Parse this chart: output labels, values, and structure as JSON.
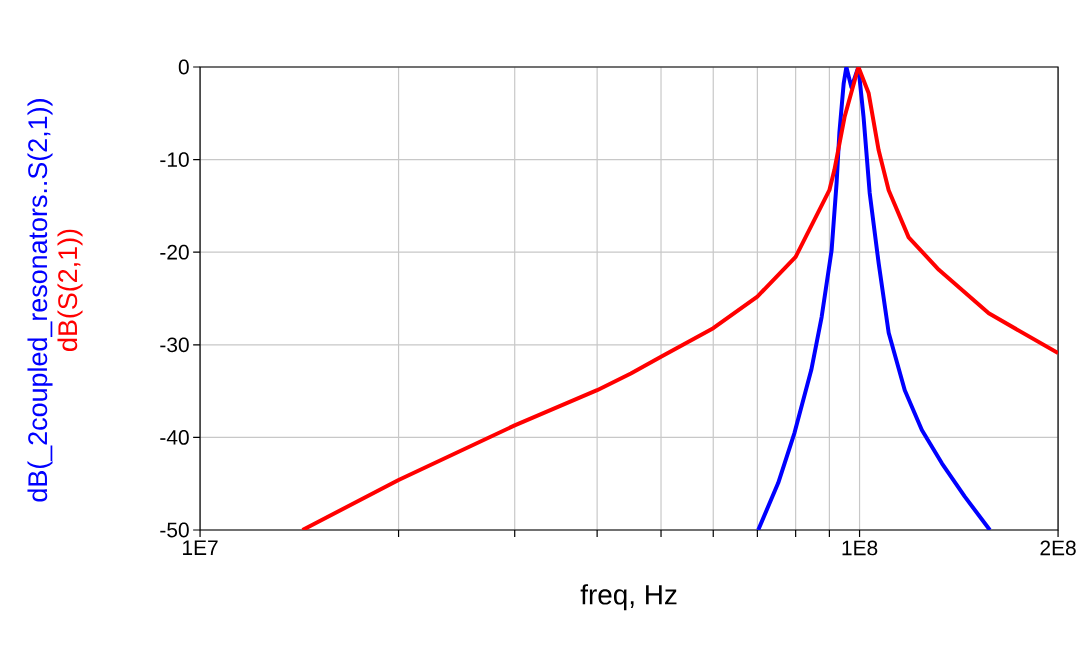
{
  "chart_data": {
    "type": "line",
    "xlabel": "freq, Hz",
    "log": "x",
    "grid": true,
    "marker": "none",
    "line_style": "solid",
    "xlim": [
      10000000,
      200000000
    ],
    "ylim": [
      -50,
      0
    ],
    "xticks": [
      {
        "value": 10000000,
        "label": "1E7"
      },
      {
        "value": 20000000,
        "label": null
      },
      {
        "value": 30000000,
        "label": null
      },
      {
        "value": 40000000,
        "label": null
      },
      {
        "value": 50000000,
        "label": null
      },
      {
        "value": 60000000,
        "label": null
      },
      {
        "value": 70000000,
        "label": null
      },
      {
        "value": 80000000,
        "label": null
      },
      {
        "value": 90000000,
        "label": null
      },
      {
        "value": 100000000,
        "label": "1E8"
      },
      {
        "value": 200000000,
        "label": "2E8"
      }
    ],
    "yticks": [
      -50,
      -40,
      -30,
      -20,
      -10,
      0
    ],
    "series": [
      {
        "name": "dB(_2coupled_resonators..S(2,1))",
        "color": "#0000ff",
        "x": [
          70200000,
          75300000,
          79700000,
          84500000,
          87600000,
          90700000,
          92300000,
          93200000,
          94600000,
          95500000,
          97200000,
          99600000,
          101400000,
          103600000,
          106900000,
          110700000,
          117100000,
          124300000,
          133300000,
          144400000,
          157600000
        ],
        "values": [
          -50,
          -44.9,
          -39.5,
          -32.7,
          -27,
          -19.8,
          -12.5,
          -7.1,
          -1.8,
          0,
          -2.2,
          0,
          -5.4,
          -13.6,
          -21.2,
          -28.7,
          -34.9,
          -39.2,
          -42.8,
          -46.4,
          -50
        ]
      },
      {
        "name": "dB(S(2,1))",
        "color": "#ff0000",
        "x": [
          14300000,
          20000000,
          30000000,
          40000000,
          45000000,
          50000000,
          60000000,
          70000000,
          80000000,
          90000000,
          91600000,
          94900000,
          99600000,
          103200000,
          106900000,
          110700000,
          118700000,
          131900000,
          157000000,
          200000000
        ],
        "values": [
          -50,
          -44.6,
          -38.7,
          -34.9,
          -33.1,
          -31.3,
          -28.2,
          -24.8,
          -20.5,
          -13.3,
          -11.1,
          -5.4,
          0,
          -2.8,
          -9,
          -13.3,
          -18.4,
          -21.9,
          -26.6,
          -30.9
        ]
      }
    ]
  }
}
